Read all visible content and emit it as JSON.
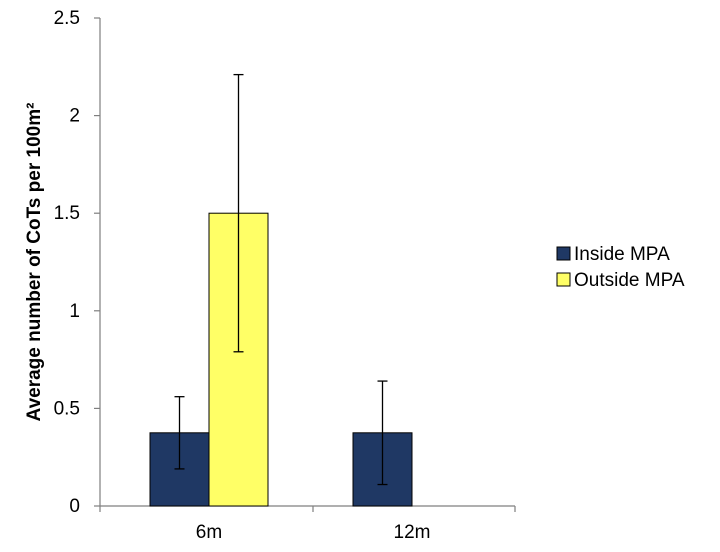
{
  "chart_data": {
    "type": "bar",
    "title": "",
    "xlabel": "",
    "ylabel": "Average number of CoTs per 100m²",
    "categories": [
      "6m",
      "12m"
    ],
    "series": [
      {
        "name": "Inside MPA",
        "color": "#1f3864",
        "values": [
          0.375,
          0.375
        ],
        "error_low": [
          0.19,
          0.11
        ],
        "error_high": [
          0.56,
          0.64
        ]
      },
      {
        "name": "Outside MPA",
        "color": "#ffff66",
        "values": [
          1.5,
          0
        ],
        "error_low": [
          0.79,
          null
        ],
        "error_high": [
          2.21,
          null
        ]
      }
    ],
    "ylim": [
      0,
      2.5
    ],
    "yticks": [
      "0",
      "0.5",
      "1",
      "1.5",
      "2",
      "2.5"
    ],
    "ytick_values": [
      0,
      0.5,
      1,
      1.5,
      2,
      2.5
    ],
    "grid": false,
    "legend": "right"
  }
}
